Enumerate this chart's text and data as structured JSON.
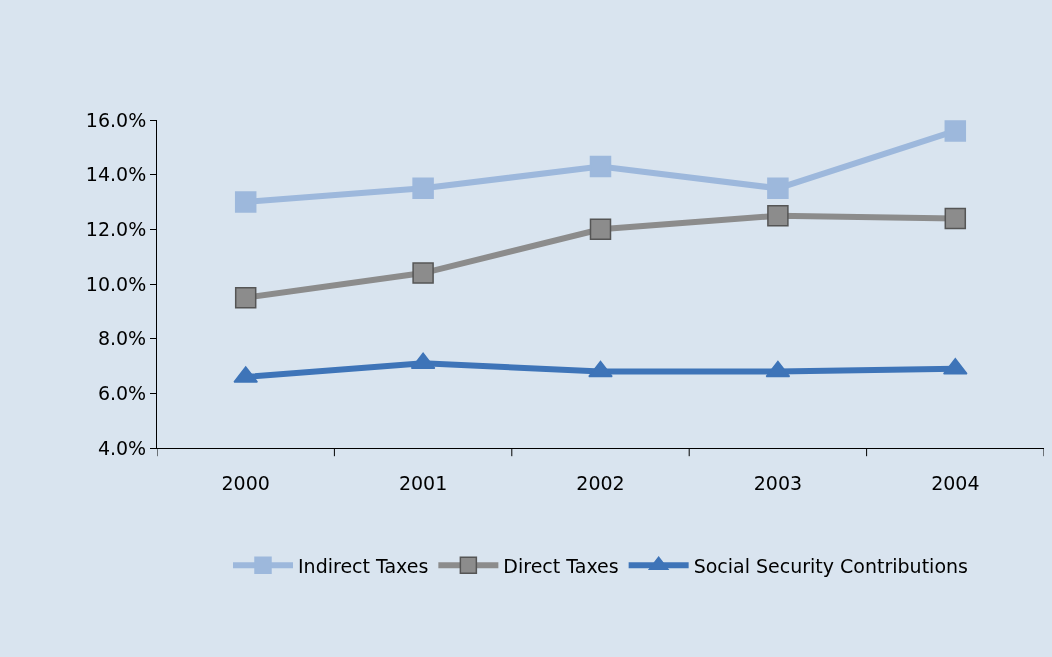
{
  "chart_data": {
    "type": "line",
    "categories": [
      "2000",
      "2001",
      "2002",
      "2003",
      "2004"
    ],
    "series": [
      {
        "name": "Indirect Taxes",
        "color": "#9db8dc",
        "marker": "square",
        "values": [
          13.0,
          13.5,
          14.3,
          13.5,
          15.6
        ]
      },
      {
        "name": "Direct Taxes",
        "color": "#8c8c8c",
        "marker": "square",
        "values": [
          9.5,
          10.4,
          12.0,
          12.5,
          12.4
        ]
      },
      {
        "name": "Social Security Contributions",
        "color": "#3e74b8",
        "marker": "triangle",
        "values": [
          6.6,
          7.1,
          6.8,
          6.8,
          6.9
        ]
      }
    ],
    "ylim": [
      4,
      16
    ],
    "yticks": [
      {
        "value": 4,
        "label": "4.0%"
      },
      {
        "value": 6,
        "label": "6.0%"
      },
      {
        "value": 8,
        "label": "8.0%"
      },
      {
        "value": 10,
        "label": "10.0%"
      },
      {
        "value": 12,
        "label": "12.0%"
      },
      {
        "value": 14,
        "label": "14.0%"
      },
      {
        "value": 16,
        "label": "16.0%"
      }
    ],
    "grid": false,
    "legend": "bottom",
    "line_style": "solid"
  }
}
